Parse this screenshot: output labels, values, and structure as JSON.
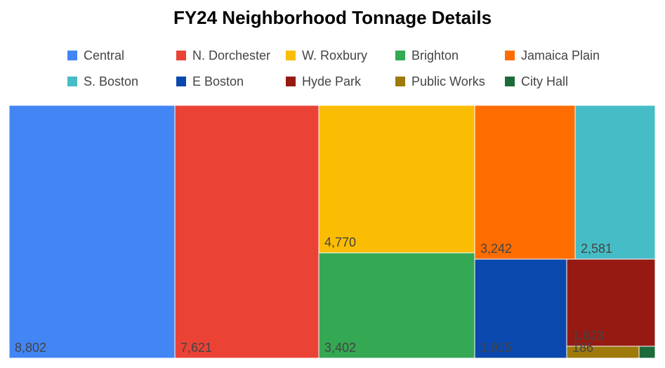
{
  "chart_data": {
    "type": "treemap",
    "title": "FY24 Neighborhood Tonnage Details",
    "legend_position": "top",
    "series": [
      {
        "name": "Central",
        "value": 8802,
        "label": "8,802",
        "color": "#4285F4"
      },
      {
        "name": "N. Dorchester",
        "value": 7621,
        "label": "7,621",
        "color": "#EA4335"
      },
      {
        "name": "W. Roxbury",
        "value": 4770,
        "label": "4,770",
        "color": "#FBBC04"
      },
      {
        "name": "Brighton",
        "value": 3402,
        "label": "3,402",
        "color": "#34A853"
      },
      {
        "name": "Jamaica Plain",
        "value": 3242,
        "label": "3,242",
        "color": "#FF6D01"
      },
      {
        "name": "S. Boston",
        "value": 2581,
        "label": "2,581",
        "color": "#46BDC6"
      },
      {
        "name": "E Boston",
        "value": 1915,
        "label": "1,915",
        "color": "#0B48AD"
      },
      {
        "name": "Hyde Park",
        "value": 1623,
        "label": "1,623",
        "color": "#961A12"
      },
      {
        "name": "Public Works",
        "value": 186,
        "label": "186",
        "color": "#9D7A0A"
      },
      {
        "name": "City Hall",
        "value": null,
        "label": "",
        "color": "#1D6B3A"
      }
    ]
  }
}
